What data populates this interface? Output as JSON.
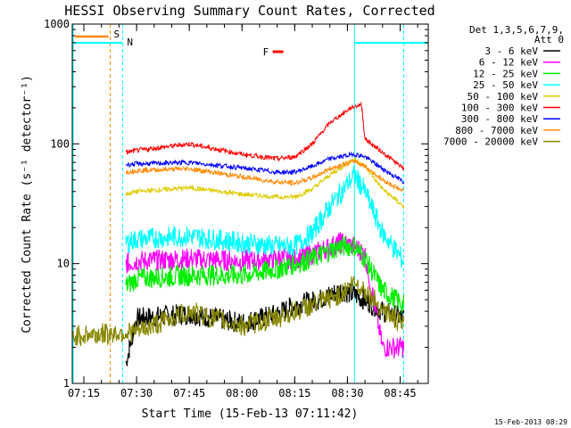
{
  "chart_data": {
    "type": "line",
    "title": "HESSI Observing Summary Count Rates, Corrected",
    "xlabel": "Start Time (15-Feb-13 07:11:42)",
    "ylabel": "Corrected Count Rate (s⁻¹ detector⁻¹)",
    "yscale": "log",
    "xlim": [
      "07:11:42",
      "08:53:00"
    ],
    "ylim": [
      1,
      1000
    ],
    "x_tick_labels": [
      "07:15",
      "07:30",
      "07:45",
      "08:00",
      "08:15",
      "08:30",
      "08:45"
    ],
    "y_tick_labels": [
      "1",
      "10",
      "100",
      "1000"
    ],
    "legend_header": [
      "Det 1,3,5,6,7,9,",
      "Att 0"
    ],
    "legend_position": "top-right outside",
    "series": [
      {
        "name": "3 - 6 keV",
        "color": "#000000",
        "x": [
          "07:27",
          "07:30",
          "07:45",
          "08:00",
          "08:10",
          "08:15",
          "08:22",
          "08:28",
          "08:32",
          "08:35",
          "08:40",
          "08:46"
        ],
        "y": [
          1.5,
          3.5,
          3.8,
          3.2,
          3.8,
          4.5,
          5,
          6,
          5.5,
          5,
          4,
          3.5
        ]
      },
      {
        "name": "6 - 12 keV",
        "color": "#ff00ff",
        "x": [
          "07:27",
          "07:30",
          "07:45",
          "08:00",
          "08:10",
          "08:15",
          "08:20",
          "08:28",
          "08:32",
          "08:35",
          "08:40",
          "08:46"
        ],
        "y": [
          10,
          10.5,
          11,
          10.5,
          11,
          11,
          12,
          15,
          14,
          12,
          2,
          2
        ]
      },
      {
        "name": "12 - 25 keV",
        "color": "#00ee00",
        "x": [
          "07:27",
          "07:30",
          "07:45",
          "08:00",
          "08:10",
          "08:15",
          "08:20",
          "08:28",
          "08:32",
          "08:35",
          "08:40",
          "08:46"
        ],
        "y": [
          6.5,
          7.5,
          8,
          8,
          9,
          10,
          11,
          14,
          14,
          11,
          6,
          4.5
        ]
      },
      {
        "name": "25 - 50 keV",
        "color": "#00ffff",
        "x": [
          "07:27",
          "07:30",
          "07:45",
          "08:00",
          "08:10",
          "08:15",
          "08:20",
          "08:25",
          "08:32",
          "08:35",
          "08:40",
          "08:46"
        ],
        "y": [
          15,
          16,
          17,
          15,
          14,
          14,
          18,
          30,
          55,
          40,
          18,
          10.5
        ]
      },
      {
        "name": "50 - 100 keV",
        "color": "#ddcc00",
        "x": [
          "07:27",
          "07:30",
          "07:45",
          "08:00",
          "08:10",
          "08:15",
          "08:20",
          "08:25",
          "08:32",
          "08:35",
          "08:40",
          "08:46"
        ],
        "y": [
          38,
          40,
          43,
          38,
          36,
          36,
          42,
          55,
          75,
          65,
          42,
          30
        ]
      },
      {
        "name": "100 - 300 keV",
        "color": "#ff0000",
        "x": [
          "07:27",
          "07:30",
          "07:45",
          "08:00",
          "08:10",
          "08:15",
          "08:20",
          "08:25",
          "08:31",
          "08:34",
          "08:35",
          "08:40",
          "08:46"
        ],
        "y": [
          85,
          88,
          100,
          82,
          75,
          78,
          100,
          150,
          200,
          215,
          110,
          85,
          62
        ]
      },
      {
        "name": "300 - 800 keV",
        "color": "#0000ff",
        "x": [
          "07:27",
          "07:30",
          "07:45",
          "08:00",
          "08:10",
          "08:15",
          "08:20",
          "08:25",
          "08:32",
          "08:35",
          "08:40",
          "08:46"
        ],
        "y": [
          67,
          68,
          70,
          63,
          58,
          58,
          65,
          75,
          82,
          78,
          62,
          48
        ]
      },
      {
        "name": "800 - 7000 keV",
        "color": "#ff8800",
        "x": [
          "07:27",
          "07:30",
          "07:45",
          "08:00",
          "08:10",
          "08:15",
          "08:20",
          "08:25",
          "08:32",
          "08:35",
          "08:40",
          "08:46"
        ],
        "y": [
          58,
          60,
          62,
          53,
          48,
          47,
          52,
          62,
          72,
          65,
          50,
          40
        ]
      },
      {
        "name": "7000 - 20000 keV",
        "color": "#888800",
        "x": [
          "07:12",
          "07:30",
          "07:45",
          "08:00",
          "08:10",
          "08:15",
          "08:20",
          "08:28",
          "08:32",
          "08:35",
          "08:40",
          "08:46"
        ],
        "y": [
          2.5,
          2.7,
          4,
          3,
          3.5,
          4,
          4.5,
          5.5,
          7,
          6,
          4.2,
          3
        ]
      }
    ],
    "annotations": [
      {
        "text": "S",
        "color": "#ff8800",
        "x": "07:22:30"
      },
      {
        "text": "N",
        "color": "#00ffff",
        "x": "07:26:00"
      },
      {
        "text": "F",
        "color": "#ff0000",
        "x": "08:10:00"
      }
    ],
    "timestamp": "15-Feb-2013 08:29"
  }
}
